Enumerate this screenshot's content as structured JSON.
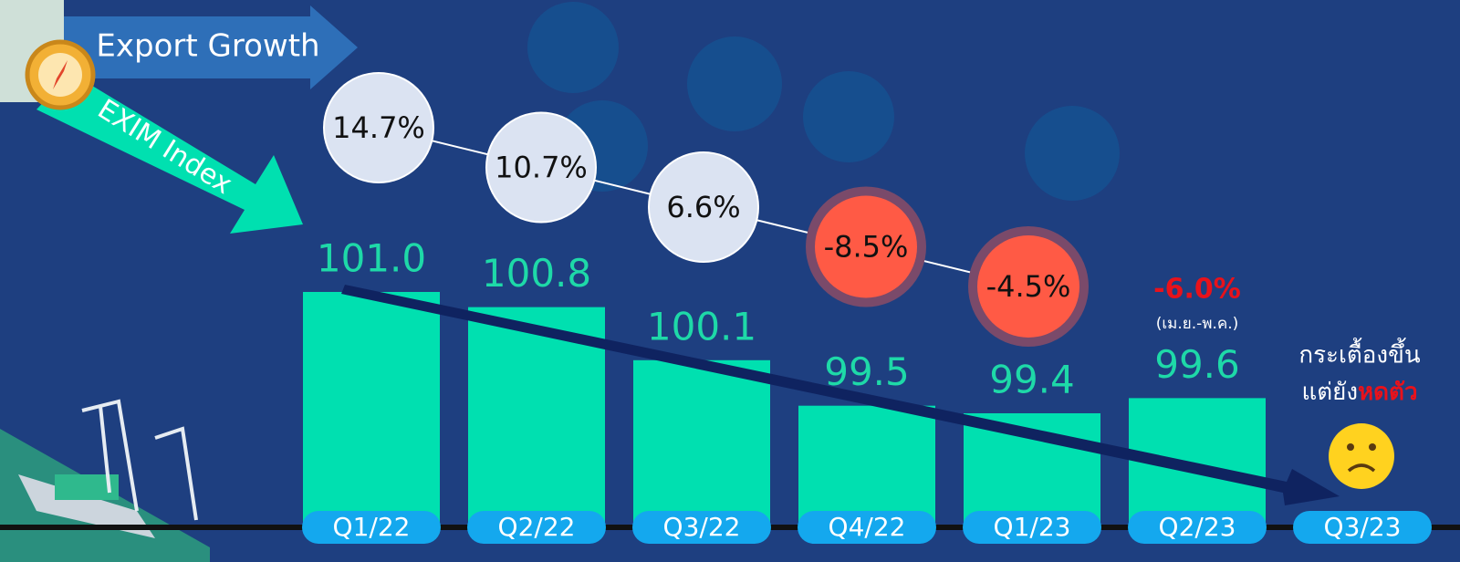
{
  "chart_data": {
    "type": "bar",
    "categories": [
      "Q1/22",
      "Q2/22",
      "Q3/22",
      "Q4/22",
      "Q1/23",
      "Q2/23",
      "Q3/23"
    ],
    "series": [
      {
        "name": "EXIM Index",
        "color": "#00e0b0",
        "values": [
          101.0,
          100.8,
          100.1,
          99.5,
          99.4,
          99.6,
          null
        ],
        "value_labels": [
          "101.0",
          "100.8",
          "100.1",
          "99.5",
          "99.4",
          "99.6",
          null
        ]
      },
      {
        "name": "Export Growth",
        "color": "#dbe3f2",
        "negative_color": "#ff5a45",
        "values": [
          14.7,
          10.7,
          6.6,
          -8.5,
          -4.5,
          -6.0,
          null
        ],
        "value_labels": [
          "14.7%",
          "10.7%",
          "6.6%",
          "-8.5%",
          "-4.5%",
          "-6.0%",
          null
        ]
      }
    ],
    "annotations": {
      "period_note": "(เม.ย.-พ.ค.)",
      "comment_line1": "กระเตื้องขึ้น",
      "comment_line2": "แต่ยัง",
      "comment_emphasis": "หดตัว"
    }
  }
}
